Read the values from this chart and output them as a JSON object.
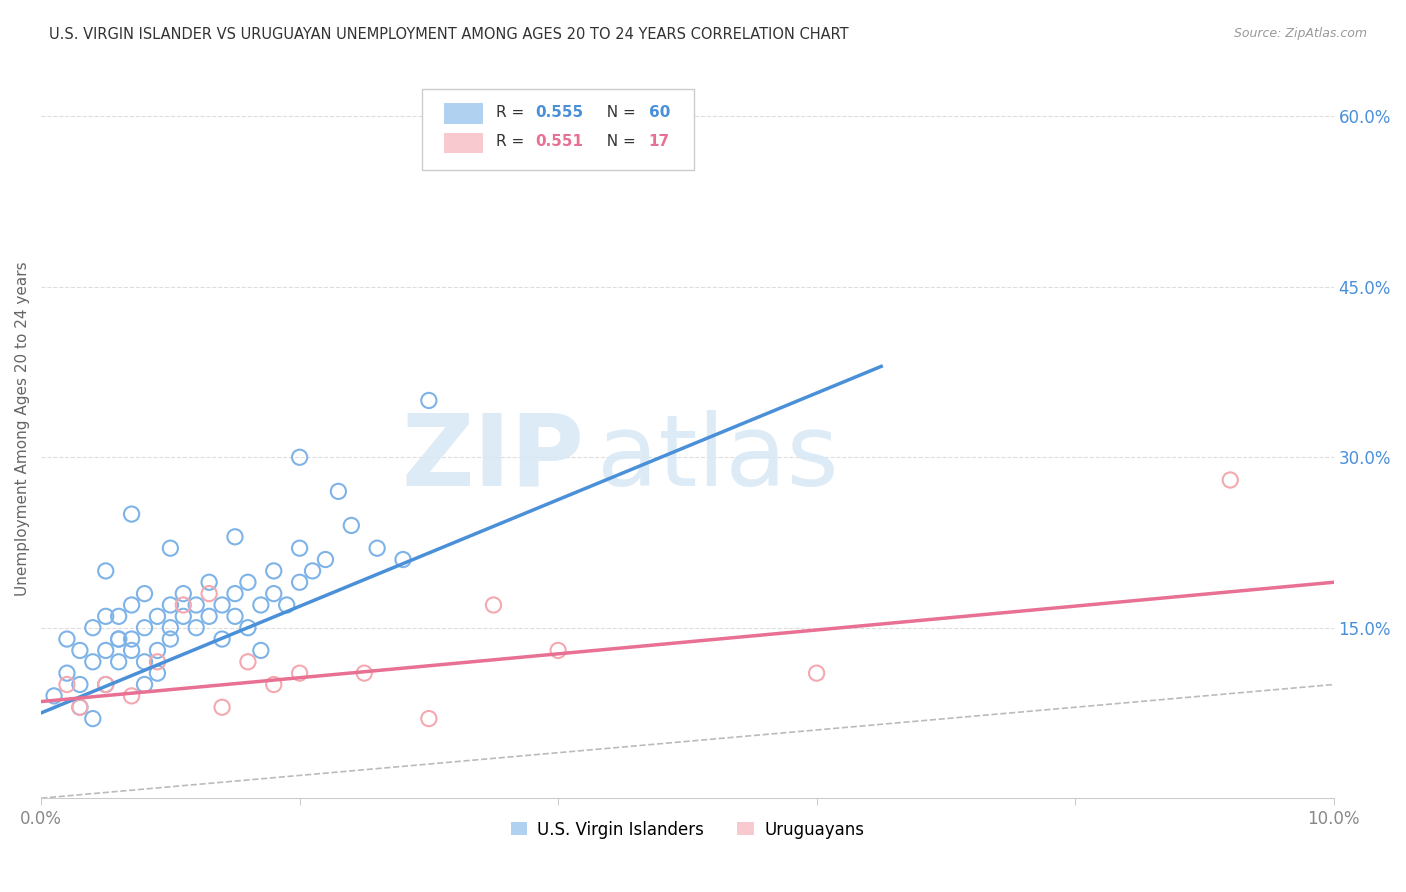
{
  "title": "U.S. VIRGIN ISLANDER VS URUGUAYAN UNEMPLOYMENT AMONG AGES 20 TO 24 YEARS CORRELATION CHART",
  "source": "Source: ZipAtlas.com",
  "ylabel": "Unemployment Among Ages 20 to 24 years",
  "xlim": [
    0.0,
    0.1
  ],
  "ylim": [
    0.0,
    0.65
  ],
  "xticks": [
    0.0,
    0.02,
    0.04,
    0.06,
    0.08,
    0.1
  ],
  "xticklabels": [
    "0.0%",
    "",
    "",
    "",
    "",
    "10.0%"
  ],
  "yticks_right": [
    0.0,
    0.15,
    0.3,
    0.45,
    0.6
  ],
  "yticklabels_right": [
    "",
    "15.0%",
    "30.0%",
    "45.0%",
    "60.0%"
  ],
  "watermark_zip": "ZIP",
  "watermark_atlas": "atlas",
  "blue_R": "0.555",
  "blue_N": "60",
  "pink_R": "0.551",
  "pink_N": "17",
  "blue_color": "#7EB3E8",
  "pink_color": "#F4A8B0",
  "blue_line_color": "#4A90D9",
  "pink_line_color": "#E87092",
  "ref_line_color": "#BBBBBB",
  "background_color": "#FFFFFF",
  "legend_label_blue": "U.S. Virgin Islanders",
  "legend_label_pink": "Uruguayans",
  "blue_scatter_x": [
    0.001,
    0.002,
    0.002,
    0.003,
    0.003,
    0.004,
    0.004,
    0.005,
    0.005,
    0.005,
    0.006,
    0.006,
    0.006,
    0.007,
    0.007,
    0.007,
    0.008,
    0.008,
    0.008,
    0.009,
    0.009,
    0.009,
    0.01,
    0.01,
    0.01,
    0.011,
    0.011,
    0.012,
    0.012,
    0.013,
    0.013,
    0.014,
    0.014,
    0.015,
    0.015,
    0.016,
    0.016,
    0.017,
    0.017,
    0.018,
    0.018,
    0.019,
    0.02,
    0.02,
    0.021,
    0.022,
    0.023,
    0.024,
    0.026,
    0.028,
    0.003,
    0.004,
    0.005,
    0.006,
    0.007,
    0.008,
    0.01,
    0.015,
    0.02,
    0.03
  ],
  "blue_scatter_y": [
    0.09,
    0.14,
    0.11,
    0.13,
    0.1,
    0.15,
    0.12,
    0.16,
    0.13,
    0.1,
    0.14,
    0.12,
    0.16,
    0.14,
    0.17,
    0.13,
    0.15,
    0.12,
    0.18,
    0.16,
    0.13,
    0.11,
    0.15,
    0.17,
    0.14,
    0.16,
    0.18,
    0.15,
    0.17,
    0.16,
    0.19,
    0.17,
    0.14,
    0.18,
    0.16,
    0.15,
    0.19,
    0.17,
    0.13,
    0.18,
    0.2,
    0.17,
    0.19,
    0.22,
    0.2,
    0.21,
    0.27,
    0.24,
    0.22,
    0.21,
    0.08,
    0.07,
    0.2,
    0.14,
    0.25,
    0.1,
    0.22,
    0.23,
    0.3,
    0.35
  ],
  "pink_scatter_x": [
    0.002,
    0.003,
    0.005,
    0.007,
    0.009,
    0.011,
    0.013,
    0.014,
    0.016,
    0.018,
    0.02,
    0.025,
    0.03,
    0.035,
    0.04,
    0.06,
    0.092
  ],
  "pink_scatter_y": [
    0.1,
    0.08,
    0.1,
    0.09,
    0.12,
    0.17,
    0.18,
    0.08,
    0.12,
    0.1,
    0.11,
    0.11,
    0.07,
    0.17,
    0.13,
    0.11,
    0.28
  ],
  "blue_line_x": [
    0.0,
    0.065
  ],
  "blue_line_y": [
    0.075,
    0.38
  ],
  "pink_line_x": [
    0.0,
    0.1
  ],
  "pink_line_y": [
    0.085,
    0.19
  ],
  "ref_line_x": [
    0.0,
    0.65
  ],
  "ref_line_y": [
    0.0,
    0.65
  ]
}
